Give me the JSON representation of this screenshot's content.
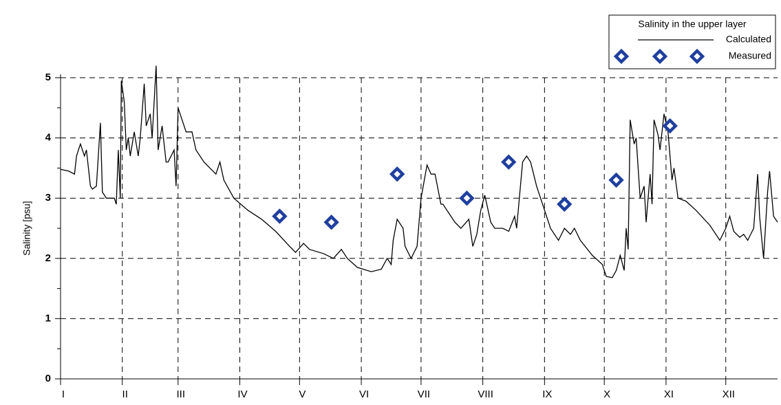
{
  "chart_data": {
    "type": "line",
    "ylabel": "Salinity [psu]",
    "xlim": [
      0,
      360
    ],
    "ylim": [
      0,
      5
    ],
    "xticks": [
      {
        "value": 0,
        "label": "I"
      },
      {
        "value": 31,
        "label": "II"
      },
      {
        "value": 59,
        "label": "III"
      },
      {
        "value": 90,
        "label": "IV"
      },
      {
        "value": 120,
        "label": "V"
      },
      {
        "value": 151,
        "label": "VI"
      },
      {
        "value": 181,
        "label": "VII"
      },
      {
        "value": 212,
        "label": "VIII"
      },
      {
        "value": 243,
        "label": "IX"
      },
      {
        "value": 273,
        "label": "X"
      },
      {
        "value": 304,
        "label": "XI"
      },
      {
        "value": 334,
        "label": "XII"
      }
    ],
    "yticks": [
      0,
      1,
      2,
      3,
      4,
      5
    ],
    "grid": true,
    "legend": {
      "title": "Salinity in the upper layer",
      "position": "top-right"
    },
    "series": [
      {
        "name": "Calculated",
        "color": "#000000",
        "marker": "none",
        "x": [
          0,
          4,
          7,
          8,
          9,
          10,
          12,
          13,
          15,
          16,
          18,
          20,
          21,
          23,
          27,
          28,
          29,
          30,
          30.5,
          32,
          33,
          34,
          35,
          37,
          39,
          40,
          42,
          43,
          45,
          46,
          48,
          49,
          51,
          53,
          54,
          57,
          58,
          59,
          61,
          63,
          66,
          68,
          72,
          75,
          78,
          80,
          82,
          87,
          94,
          101,
          108,
          115,
          118,
          122,
          125,
          132,
          137,
          141,
          144,
          149,
          156,
          161,
          164,
          166,
          167,
          169,
          172,
          173,
          176,
          179,
          181,
          184,
          186,
          188,
          191,
          192,
          196,
          198,
          201,
          205,
          207,
          209,
          211,
          213,
          216,
          218,
          222,
          225,
          228,
          229,
          232,
          234,
          236,
          239,
          243,
          246,
          250,
          253,
          256,
          258,
          261,
          267,
          272,
          274,
          277,
          279,
          281,
          283,
          284,
          285,
          286,
          288,
          289,
          291,
          293,
          294,
          296,
          297,
          298,
          300,
          301,
          303,
          305,
          307,
          308,
          310,
          314,
          319,
          326,
          331,
          334,
          336,
          338,
          341,
          343,
          345,
          348,
          350,
          351,
          353,
          355,
          356,
          358,
          360
        ],
        "values": [
          3.48,
          3.45,
          3.4,
          3.7,
          3.8,
          3.9,
          3.7,
          3.8,
          3.2,
          3.15,
          3.2,
          4.25,
          3.1,
          3.0,
          3.0,
          2.9,
          3.8,
          3.0,
          4.95,
          4.6,
          3.8,
          4.0,
          3.7,
          4.1,
          3.7,
          4.0,
          4.9,
          4.2,
          4.4,
          4.0,
          5.2,
          3.8,
          4.2,
          3.6,
          3.6,
          3.8,
          3.2,
          4.5,
          4.3,
          4.1,
          4.1,
          3.8,
          3.6,
          3.5,
          3.4,
          3.6,
          3.3,
          3.0,
          2.8,
          2.65,
          2.45,
          2.2,
          2.1,
          2.25,
          2.15,
          2.08,
          2.0,
          2.15,
          2.0,
          1.85,
          1.78,
          1.82,
          2.0,
          1.9,
          2.3,
          2.65,
          2.5,
          2.2,
          2.0,
          2.2,
          3.0,
          3.55,
          3.4,
          3.4,
          2.9,
          2.9,
          2.7,
          2.6,
          2.5,
          2.65,
          2.2,
          2.4,
          2.8,
          3.05,
          2.6,
          2.5,
          2.5,
          2.45,
          2.7,
          2.5,
          3.6,
          3.7,
          3.6,
          3.2,
          2.8,
          2.5,
          2.3,
          2.5,
          2.4,
          2.5,
          2.3,
          2.05,
          1.9,
          1.7,
          1.68,
          1.8,
          2.05,
          1.8,
          2.5,
          2.15,
          4.3,
          3.9,
          4.0,
          3.0,
          3.2,
          2.6,
          3.4,
          2.9,
          4.3,
          4.05,
          3.8,
          4.4,
          4.1,
          3.3,
          3.5,
          3.0,
          2.95,
          2.8,
          2.55,
          2.3,
          2.5,
          2.7,
          2.45,
          2.35,
          2.4,
          2.3,
          2.5,
          3.4,
          2.7,
          2.0,
          3.1,
          3.45,
          2.7,
          2.6
        ]
      },
      {
        "name": "Measured",
        "color": "#1f3f9f",
        "marker": "diamond",
        "x": [
          110,
          136,
          169,
          204,
          225,
          253,
          279,
          306
        ],
        "values": [
          2.7,
          2.6,
          3.4,
          3.0,
          3.6,
          2.9,
          3.3,
          4.2
        ]
      }
    ]
  }
}
